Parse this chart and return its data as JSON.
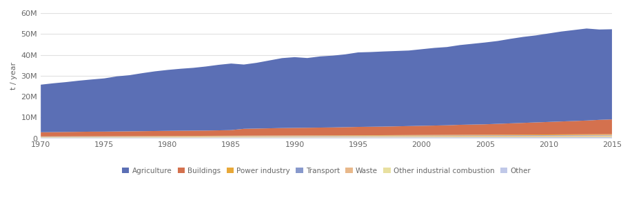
{
  "years": [
    1970,
    1971,
    1972,
    1973,
    1974,
    1975,
    1976,
    1977,
    1978,
    1979,
    1980,
    1981,
    1982,
    1983,
    1984,
    1985,
    1986,
    1987,
    1988,
    1989,
    1990,
    1991,
    1992,
    1993,
    1994,
    1995,
    1996,
    1997,
    1998,
    1999,
    2000,
    2001,
    2002,
    2003,
    2004,
    2005,
    2006,
    2007,
    2008,
    2009,
    2010,
    2011,
    2012,
    2013,
    2014,
    2015
  ],
  "agriculture": [
    22800000,
    23400000,
    23900000,
    24500000,
    25000000,
    25500000,
    26400000,
    26900000,
    27800000,
    28600000,
    29200000,
    29700000,
    30100000,
    30700000,
    31400000,
    31900000,
    30800000,
    31500000,
    32500000,
    33500000,
    33900000,
    33400000,
    34100000,
    34400000,
    34900000,
    35700000,
    35800000,
    36000000,
    36100000,
    36200000,
    36700000,
    37200000,
    37500000,
    38200000,
    38700000,
    39200000,
    39700000,
    40500000,
    41200000,
    41700000,
    42400000,
    43100000,
    43600000,
    44100000,
    43300000,
    43200000
  ],
  "buildings": [
    2000000,
    2050000,
    2100000,
    2150000,
    2200000,
    2200000,
    2250000,
    2300000,
    2350000,
    2400000,
    2450000,
    2480000,
    2500000,
    2520000,
    2600000,
    2700000,
    3300000,
    3400000,
    3500000,
    3600000,
    3650000,
    3700000,
    3750000,
    3800000,
    3900000,
    4000000,
    4050000,
    4100000,
    4200000,
    4300000,
    4400000,
    4500000,
    4600000,
    4800000,
    4900000,
    5000000,
    5200000,
    5400000,
    5600000,
    5800000,
    6000000,
    6200000,
    6400000,
    6600000,
    6900000,
    7100000
  ],
  "power_industry": [
    120000,
    125000,
    130000,
    135000,
    140000,
    145000,
    150000,
    155000,
    160000,
    165000,
    170000,
    175000,
    180000,
    185000,
    190000,
    195000,
    200000,
    205000,
    210000,
    215000,
    220000,
    225000,
    230000,
    235000,
    240000,
    245000,
    250000,
    255000,
    260000,
    265000,
    270000,
    275000,
    280000,
    285000,
    290000,
    295000,
    300000,
    305000,
    310000,
    315000,
    320000,
    325000,
    330000,
    335000,
    340000,
    345000
  ],
  "transport": [
    100000,
    102000,
    104000,
    106000,
    108000,
    110000,
    112000,
    114000,
    116000,
    118000,
    120000,
    122000,
    124000,
    126000,
    128000,
    130000,
    132000,
    134000,
    136000,
    138000,
    140000,
    145000,
    150000,
    155000,
    160000,
    165000,
    170000,
    175000,
    180000,
    185000,
    190000,
    195000,
    200000,
    205000,
    210000,
    215000,
    220000,
    225000,
    230000,
    235000,
    240000,
    245000,
    250000,
    255000,
    260000,
    265000
  ],
  "waste": [
    200000,
    205000,
    210000,
    215000,
    220000,
    225000,
    230000,
    235000,
    240000,
    245000,
    250000,
    255000,
    260000,
    265000,
    270000,
    275000,
    280000,
    285000,
    290000,
    295000,
    300000,
    305000,
    310000,
    315000,
    320000,
    325000,
    330000,
    335000,
    340000,
    345000,
    350000,
    355000,
    360000,
    365000,
    370000,
    375000,
    380000,
    385000,
    390000,
    395000,
    400000,
    405000,
    410000,
    415000,
    420000,
    425000
  ],
  "other_industrial": [
    180000,
    185000,
    190000,
    195000,
    200000,
    205000,
    210000,
    215000,
    220000,
    225000,
    230000,
    235000,
    240000,
    245000,
    250000,
    255000,
    260000,
    265000,
    270000,
    275000,
    280000,
    285000,
    290000,
    295000,
    300000,
    305000,
    310000,
    315000,
    320000,
    325000,
    330000,
    335000,
    340000,
    345000,
    350000,
    355000,
    360000,
    365000,
    370000,
    375000,
    380000,
    385000,
    390000,
    395000,
    400000,
    405000
  ],
  "other": [
    300000,
    305000,
    310000,
    315000,
    320000,
    325000,
    330000,
    335000,
    340000,
    345000,
    350000,
    355000,
    360000,
    365000,
    370000,
    375000,
    380000,
    385000,
    390000,
    395000,
    400000,
    405000,
    410000,
    415000,
    420000,
    425000,
    430000,
    435000,
    440000,
    445000,
    450000,
    455000,
    460000,
    465000,
    470000,
    475000,
    480000,
    485000,
    490000,
    495000,
    500000,
    505000,
    510000,
    515000,
    520000,
    525000
  ],
  "colors": {
    "agriculture": "#5b6fb5",
    "buildings": "#d4714e",
    "power_industry": "#e8a838",
    "transport": "#8899cc",
    "waste": "#e8b88a",
    "other_industrial": "#e8e0a0",
    "other": "#c0c8e8"
  },
  "labels": {
    "agriculture": "Agriculture",
    "buildings": "Buildings",
    "power_industry": "Power industry",
    "transport": "Transport",
    "waste": "Waste",
    "other_industrial": "Other industrial combustion",
    "other": "Other"
  },
  "ylabel": "t / year",
  "ylim": [
    0,
    60000000
  ],
  "yticks": [
    0,
    10000000,
    20000000,
    30000000,
    40000000,
    50000000,
    60000000
  ],
  "ytick_labels": [
    "0",
    "10M",
    "20M",
    "30M",
    "40M",
    "50M",
    "60M"
  ],
  "xlim": [
    1970,
    2015
  ],
  "xticks": [
    1970,
    1975,
    1980,
    1985,
    1990,
    1995,
    2000,
    2005,
    2010,
    2015
  ],
  "background_color": "#ffffff",
  "grid_color": "#e0e0e0",
  "text_color": "#666666",
  "legend_fontsize": 7.5,
  "axis_fontsize": 8
}
